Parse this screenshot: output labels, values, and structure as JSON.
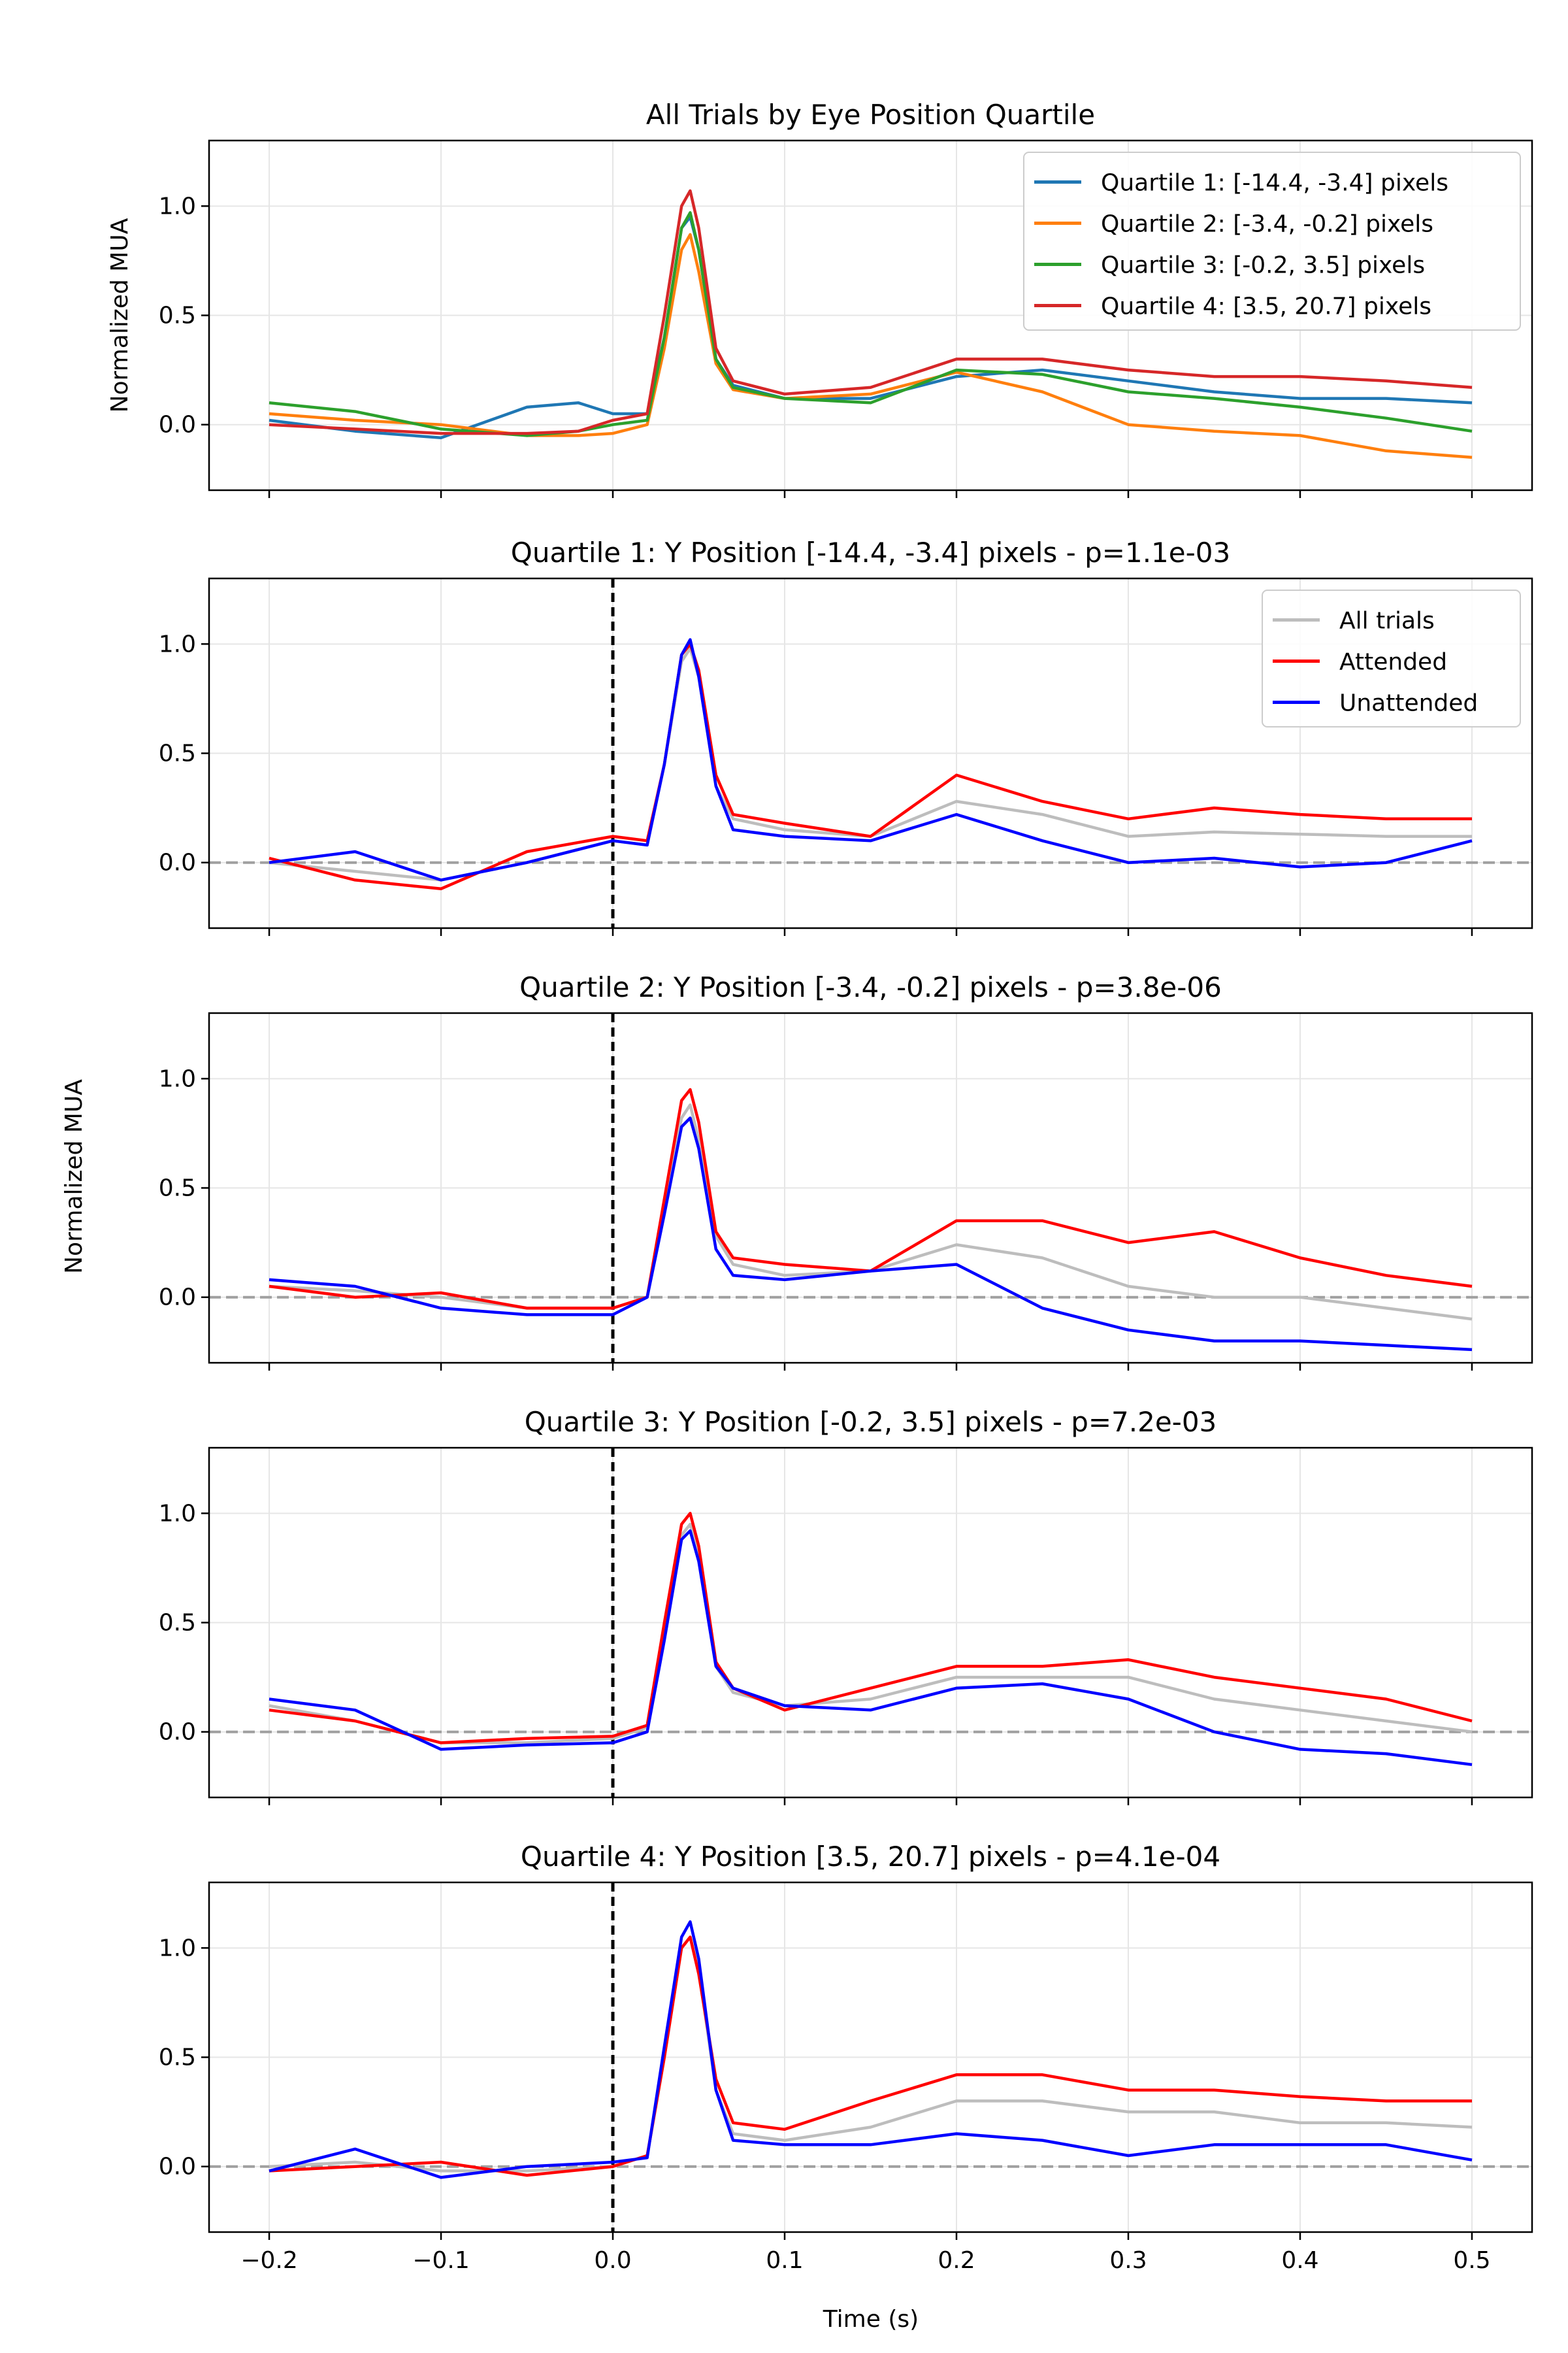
{
  "figure": {
    "ylabel_shared": "Normalized MUA",
    "xlabel": "Time (s)"
  },
  "colors": {
    "q1": "#1f77b4",
    "q2": "#ff7f0e",
    "q3": "#2ca02c",
    "q4": "#d62728",
    "all_trials": "#bdbdbd",
    "attended": "#ff0000",
    "unattended": "#0000ff",
    "grid": "#e6e6e6",
    "baseline": "#a0a0a0",
    "onset": "#000000"
  },
  "chart_data": [
    {
      "type": "line",
      "title": "All Trials by Eye Position Quartile",
      "ylabel": "Normalized MUA",
      "xlabel": "",
      "xlim": [
        -0.235,
        0.535
      ],
      "ylim": [
        -0.3,
        1.3
      ],
      "xticks": [
        -0.2,
        -0.1,
        0.0,
        0.1,
        0.2,
        0.3,
        0.4,
        0.5
      ],
      "yticks": [
        0.0,
        0.5,
        1.0
      ],
      "grid": true,
      "legend": "top-right",
      "onset_line": false,
      "baseline_line": false,
      "series": [
        {
          "name": "Quartile 1: [-14.4, -3.4] pixels",
          "color_key": "q1",
          "x": [
            -0.2,
            -0.15,
            -0.1,
            -0.05,
            -0.02,
            0.0,
            0.02,
            0.03,
            0.04,
            0.045,
            0.05,
            0.06,
            0.07,
            0.1,
            0.15,
            0.2,
            0.25,
            0.3,
            0.35,
            0.4,
            0.45,
            0.5
          ],
          "y": [
            0.02,
            -0.03,
            -0.06,
            0.08,
            0.1,
            0.05,
            0.05,
            0.4,
            0.9,
            0.95,
            0.8,
            0.3,
            0.18,
            0.12,
            0.12,
            0.22,
            0.25,
            0.2,
            0.15,
            0.12,
            0.12,
            0.1
          ]
        },
        {
          "name": "Quartile 2: [-3.4, -0.2] pixels",
          "color_key": "q2",
          "x": [
            -0.2,
            -0.15,
            -0.1,
            -0.05,
            -0.02,
            0.0,
            0.02,
            0.03,
            0.04,
            0.045,
            0.05,
            0.06,
            0.07,
            0.1,
            0.15,
            0.2,
            0.25,
            0.3,
            0.35,
            0.4,
            0.45,
            0.5
          ],
          "y": [
            0.05,
            0.02,
            0.0,
            -0.05,
            -0.05,
            -0.04,
            0.0,
            0.35,
            0.8,
            0.87,
            0.7,
            0.28,
            0.16,
            0.12,
            0.14,
            0.24,
            0.15,
            0.0,
            -0.03,
            -0.05,
            -0.12,
            -0.15
          ]
        },
        {
          "name": "Quartile 3: [-0.2, 3.5] pixels",
          "color_key": "q3",
          "x": [
            -0.2,
            -0.15,
            -0.1,
            -0.05,
            -0.02,
            0.0,
            0.02,
            0.03,
            0.04,
            0.045,
            0.05,
            0.06,
            0.07,
            0.1,
            0.15,
            0.2,
            0.25,
            0.3,
            0.35,
            0.4,
            0.45,
            0.5
          ],
          "y": [
            0.1,
            0.06,
            -0.02,
            -0.05,
            -0.03,
            0.0,
            0.02,
            0.4,
            0.9,
            0.97,
            0.8,
            0.3,
            0.17,
            0.12,
            0.1,
            0.25,
            0.23,
            0.15,
            0.12,
            0.08,
            0.03,
            -0.03
          ]
        },
        {
          "name": "Quartile 4: [3.5, 20.7] pixels",
          "color_key": "q4",
          "x": [
            -0.2,
            -0.15,
            -0.1,
            -0.05,
            -0.02,
            0.0,
            0.02,
            0.03,
            0.04,
            0.045,
            0.05,
            0.06,
            0.07,
            0.1,
            0.15,
            0.2,
            0.25,
            0.3,
            0.35,
            0.4,
            0.45,
            0.5
          ],
          "y": [
            0.0,
            -0.02,
            -0.04,
            -0.04,
            -0.03,
            0.02,
            0.05,
            0.5,
            1.0,
            1.07,
            0.9,
            0.35,
            0.2,
            0.14,
            0.17,
            0.3,
            0.3,
            0.25,
            0.22,
            0.22,
            0.2,
            0.17
          ]
        }
      ]
    },
    {
      "type": "line",
      "title": "Quartile 1: Y Position [-14.4, -3.4] pixels - p=1.1e-03",
      "ylabel": "",
      "xlabel": "",
      "xlim": [
        -0.235,
        0.535
      ],
      "ylim": [
        -0.3,
        1.3
      ],
      "xticks": [
        -0.2,
        -0.1,
        0.0,
        0.1,
        0.2,
        0.3,
        0.4,
        0.5
      ],
      "yticks": [
        0.0,
        0.5,
        1.0
      ],
      "grid": true,
      "legend": "top-right",
      "onset_line": true,
      "baseline_line": true,
      "series": [
        {
          "name": "All trials",
          "color_key": "all_trials",
          "x": [
            -0.2,
            -0.15,
            -0.1,
            -0.05,
            0.0,
            0.02,
            0.03,
            0.04,
            0.045,
            0.05,
            0.06,
            0.07,
            0.1,
            0.15,
            0.2,
            0.25,
            0.3,
            0.35,
            0.4,
            0.45,
            0.5
          ],
          "y": [
            0.0,
            -0.04,
            -0.08,
            0.0,
            0.1,
            0.08,
            0.45,
            0.92,
            0.98,
            0.85,
            0.35,
            0.2,
            0.15,
            0.12,
            0.28,
            0.22,
            0.12,
            0.14,
            0.13,
            0.12,
            0.12
          ]
        },
        {
          "name": "Attended",
          "color_key": "attended",
          "x": [
            -0.2,
            -0.15,
            -0.1,
            -0.05,
            0.0,
            0.02,
            0.03,
            0.04,
            0.045,
            0.05,
            0.06,
            0.07,
            0.1,
            0.15,
            0.2,
            0.25,
            0.3,
            0.35,
            0.4,
            0.45,
            0.5
          ],
          "y": [
            0.02,
            -0.08,
            -0.12,
            0.05,
            0.12,
            0.1,
            0.45,
            0.95,
            1.0,
            0.88,
            0.4,
            0.22,
            0.18,
            0.12,
            0.4,
            0.28,
            0.2,
            0.25,
            0.22,
            0.2,
            0.2
          ]
        },
        {
          "name": "Unattended",
          "color_key": "unattended",
          "x": [
            -0.2,
            -0.15,
            -0.1,
            -0.05,
            0.0,
            0.02,
            0.03,
            0.04,
            0.045,
            0.05,
            0.06,
            0.07,
            0.1,
            0.15,
            0.2,
            0.25,
            0.3,
            0.35,
            0.4,
            0.45,
            0.5
          ],
          "y": [
            0.0,
            0.05,
            -0.08,
            0.0,
            0.1,
            0.08,
            0.45,
            0.95,
            1.02,
            0.85,
            0.35,
            0.15,
            0.12,
            0.1,
            0.22,
            0.1,
            0.0,
            0.02,
            -0.02,
            0.0,
            0.1
          ]
        }
      ]
    },
    {
      "type": "line",
      "title": "Quartile 2: Y Position [-3.4, -0.2] pixels - p=3.8e-06",
      "ylabel": "",
      "xlabel": "",
      "xlim": [
        -0.235,
        0.535
      ],
      "ylim": [
        -0.3,
        1.3
      ],
      "xticks": [
        -0.2,
        -0.1,
        0.0,
        0.1,
        0.2,
        0.3,
        0.4,
        0.5
      ],
      "yticks": [
        0.0,
        0.5,
        1.0
      ],
      "grid": true,
      "legend": "none",
      "onset_line": true,
      "baseline_line": true,
      "series": [
        {
          "name": "",
          "color_key": "all_trials",
          "x": [
            -0.2,
            -0.15,
            -0.1,
            -0.05,
            0.0,
            0.02,
            0.03,
            0.04,
            0.045,
            0.05,
            0.06,
            0.07,
            0.1,
            0.15,
            0.2,
            0.25,
            0.3,
            0.35,
            0.4,
            0.45,
            0.5
          ],
          "y": [
            0.05,
            0.03,
            0.0,
            -0.05,
            -0.05,
            0.0,
            0.4,
            0.82,
            0.88,
            0.72,
            0.28,
            0.15,
            0.1,
            0.12,
            0.24,
            0.18,
            0.05,
            0.0,
            0.0,
            -0.05,
            -0.1
          ]
        },
        {
          "name": "",
          "color_key": "attended",
          "x": [
            -0.2,
            -0.15,
            -0.1,
            -0.05,
            0.0,
            0.02,
            0.03,
            0.04,
            0.045,
            0.05,
            0.06,
            0.07,
            0.1,
            0.15,
            0.2,
            0.25,
            0.3,
            0.35,
            0.4,
            0.45,
            0.5
          ],
          "y": [
            0.05,
            0.0,
            0.02,
            -0.05,
            -0.05,
            0.0,
            0.45,
            0.9,
            0.95,
            0.8,
            0.3,
            0.18,
            0.15,
            0.12,
            0.35,
            0.35,
            0.25,
            0.3,
            0.18,
            0.1,
            0.05
          ]
        },
        {
          "name": "",
          "color_key": "unattended",
          "x": [
            -0.2,
            -0.15,
            -0.1,
            -0.05,
            0.0,
            0.02,
            0.03,
            0.04,
            0.045,
            0.05,
            0.06,
            0.07,
            0.1,
            0.15,
            0.2,
            0.25,
            0.3,
            0.35,
            0.4,
            0.45,
            0.5
          ],
          "y": [
            0.08,
            0.05,
            -0.05,
            -0.08,
            -0.08,
            0.0,
            0.38,
            0.78,
            0.82,
            0.68,
            0.22,
            0.1,
            0.08,
            0.12,
            0.15,
            -0.05,
            -0.15,
            -0.2,
            -0.2,
            -0.22,
            -0.24
          ]
        }
      ]
    },
    {
      "type": "line",
      "title": "Quartile 3: Y Position [-0.2, 3.5] pixels - p=7.2e-03",
      "ylabel": "",
      "xlabel": "",
      "xlim": [
        -0.235,
        0.535
      ],
      "ylim": [
        -0.3,
        1.3
      ],
      "xticks": [
        -0.2,
        -0.1,
        0.0,
        0.1,
        0.2,
        0.3,
        0.4,
        0.5
      ],
      "yticks": [
        0.0,
        0.5,
        1.0
      ],
      "grid": true,
      "legend": "none",
      "onset_line": true,
      "baseline_line": true,
      "series": [
        {
          "name": "",
          "color_key": "all_trials",
          "x": [
            -0.2,
            -0.15,
            -0.1,
            -0.05,
            0.0,
            0.02,
            0.03,
            0.04,
            0.045,
            0.05,
            0.06,
            0.07,
            0.1,
            0.15,
            0.2,
            0.25,
            0.3,
            0.35,
            0.4,
            0.45,
            0.5
          ],
          "y": [
            0.12,
            0.05,
            -0.05,
            -0.05,
            -0.03,
            0.02,
            0.45,
            0.9,
            0.95,
            0.8,
            0.3,
            0.18,
            0.12,
            0.15,
            0.25,
            0.25,
            0.25,
            0.15,
            0.1,
            0.05,
            0.0
          ]
        },
        {
          "name": "",
          "color_key": "attended",
          "x": [
            -0.2,
            -0.15,
            -0.1,
            -0.05,
            0.0,
            0.02,
            0.03,
            0.04,
            0.045,
            0.05,
            0.06,
            0.07,
            0.1,
            0.15,
            0.2,
            0.25,
            0.3,
            0.35,
            0.4,
            0.45,
            0.5
          ],
          "y": [
            0.1,
            0.05,
            -0.05,
            -0.03,
            -0.02,
            0.03,
            0.5,
            0.95,
            1.0,
            0.85,
            0.32,
            0.2,
            0.1,
            0.2,
            0.3,
            0.3,
            0.33,
            0.25,
            0.2,
            0.15,
            0.05
          ]
        },
        {
          "name": "",
          "color_key": "unattended",
          "x": [
            -0.2,
            -0.15,
            -0.1,
            -0.05,
            0.0,
            0.02,
            0.03,
            0.04,
            0.045,
            0.05,
            0.06,
            0.07,
            0.1,
            0.15,
            0.2,
            0.25,
            0.3,
            0.35,
            0.4,
            0.45,
            0.5
          ],
          "y": [
            0.15,
            0.1,
            -0.08,
            -0.06,
            -0.05,
            0.0,
            0.42,
            0.88,
            0.92,
            0.78,
            0.3,
            0.2,
            0.12,
            0.1,
            0.2,
            0.22,
            0.15,
            0.0,
            -0.08,
            -0.1,
            -0.15
          ]
        }
      ]
    },
    {
      "type": "line",
      "title": "Quartile 4: Y Position [3.5, 20.7] pixels - p=4.1e-04",
      "ylabel": "",
      "xlabel": "Time (s)",
      "xlim": [
        -0.235,
        0.535
      ],
      "ylim": [
        -0.3,
        1.3
      ],
      "xticks": [
        -0.2,
        -0.1,
        0.0,
        0.1,
        0.2,
        0.3,
        0.4,
        0.5
      ],
      "yticks": [
        0.0,
        0.5,
        1.0
      ],
      "grid": true,
      "legend": "none",
      "onset_line": true,
      "baseline_line": true,
      "series": [
        {
          "name": "",
          "color_key": "all_trials",
          "x": [
            -0.2,
            -0.15,
            -0.1,
            -0.05,
            0.0,
            0.02,
            0.03,
            0.04,
            0.045,
            0.05,
            0.06,
            0.07,
            0.1,
            0.15,
            0.2,
            0.25,
            0.3,
            0.35,
            0.4,
            0.45,
            0.5
          ],
          "y": [
            0.0,
            0.02,
            -0.02,
            -0.02,
            0.0,
            0.05,
            0.5,
            1.0,
            1.05,
            0.9,
            0.35,
            0.15,
            0.12,
            0.18,
            0.3,
            0.3,
            0.25,
            0.25,
            0.2,
            0.2,
            0.18
          ]
        },
        {
          "name": "",
          "color_key": "attended",
          "x": [
            -0.2,
            -0.15,
            -0.1,
            -0.05,
            0.0,
            0.02,
            0.03,
            0.04,
            0.045,
            0.05,
            0.06,
            0.07,
            0.1,
            0.15,
            0.2,
            0.25,
            0.3,
            0.35,
            0.4,
            0.45,
            0.5
          ],
          "y": [
            -0.02,
            0.0,
            0.02,
            -0.04,
            0.0,
            0.05,
            0.5,
            1.0,
            1.05,
            0.88,
            0.4,
            0.2,
            0.17,
            0.3,
            0.42,
            0.42,
            0.35,
            0.35,
            0.32,
            0.3,
            0.3
          ]
        },
        {
          "name": "",
          "color_key": "unattended",
          "x": [
            -0.2,
            -0.15,
            -0.1,
            -0.05,
            0.0,
            0.02,
            0.03,
            0.04,
            0.045,
            0.05,
            0.06,
            0.07,
            0.1,
            0.15,
            0.2,
            0.25,
            0.3,
            0.35,
            0.4,
            0.45,
            0.5
          ],
          "y": [
            -0.02,
            0.08,
            -0.05,
            0.0,
            0.02,
            0.04,
            0.55,
            1.05,
            1.12,
            0.95,
            0.35,
            0.12,
            0.1,
            0.1,
            0.15,
            0.12,
            0.05,
            0.1,
            0.1,
            0.1,
            0.03
          ]
        }
      ]
    }
  ]
}
